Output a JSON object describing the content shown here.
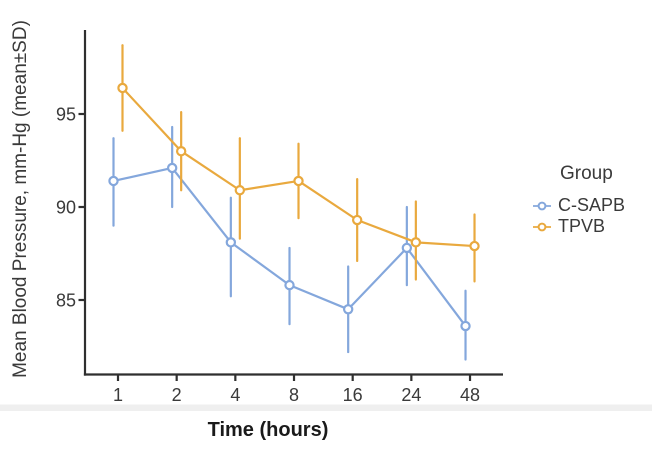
{
  "chart_data": {
    "type": "line",
    "title": "",
    "xlabel": "Time (hours)",
    "ylabel": "Mean Blood Pressure, mm-Hg (mean±SD)",
    "legend_title": "Group",
    "legend_position": "right-center",
    "categories": [
      "1",
      "2",
      "4",
      "8",
      "16",
      "24",
      "48"
    ],
    "x_axis_type": "categorical",
    "yticks": [
      85,
      90,
      95
    ],
    "ylim": [
      81,
      99.5
    ],
    "grid": false,
    "error_bar_style": "vertical-line-no-caps",
    "point_style": "open-circle",
    "axis_color": "#2f2f2f",
    "text_color": "#3a3a3a",
    "series": [
      {
        "name": "C-SAPB",
        "color": "#84A7DC",
        "means": [
          91.4,
          92.1,
          88.1,
          85.8,
          84.5,
          87.8,
          83.6
        ],
        "sd_low": [
          89.0,
          90.0,
          85.2,
          83.7,
          82.2,
          85.8,
          81.8
        ],
        "sd_high": [
          93.7,
          94.3,
          90.5,
          87.8,
          86.8,
          90.0,
          85.5
        ]
      },
      {
        "name": "TPVB",
        "color": "#E9A93E",
        "means": [
          96.4,
          93.0,
          90.9,
          91.4,
          89.3,
          88.1,
          87.9
        ],
        "sd_low": [
          94.1,
          90.9,
          88.3,
          89.4,
          87.1,
          86.1,
          86.0
        ],
        "sd_high": [
          98.7,
          95.1,
          93.7,
          93.4,
          91.5,
          90.3,
          89.6
        ]
      }
    ]
  }
}
